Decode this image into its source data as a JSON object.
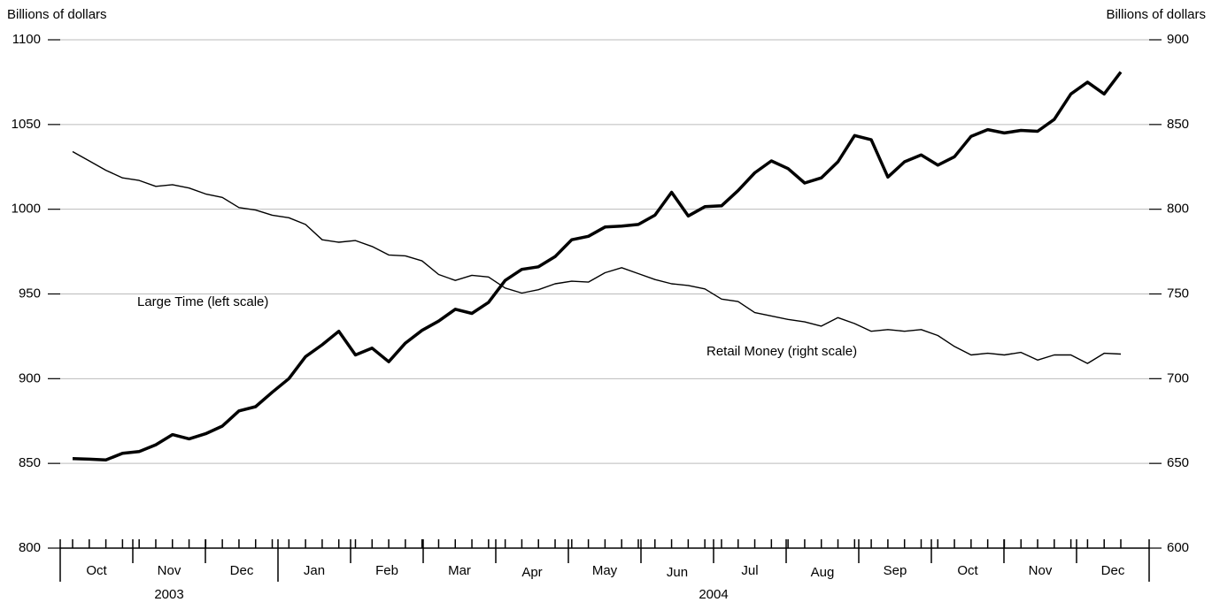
{
  "chart_data": {
    "type": "line",
    "y_label": "Billions of dollars",
    "y2_label": "Billions of dollars",
    "ylim": [
      800,
      1100
    ],
    "yticks": [
      800,
      850,
      900,
      950,
      1000,
      1050,
      1100
    ],
    "y2lim": [
      600,
      900
    ],
    "y2ticks": [
      600,
      650,
      700,
      750,
      800,
      850,
      900
    ],
    "grid": true,
    "months": [
      "Oct",
      "Nov",
      "Dec",
      "Jan",
      "Feb",
      "Mar",
      "Apr",
      "May",
      "Jun",
      "Jul",
      "Aug",
      "Sep",
      "Oct",
      "Nov",
      "Dec"
    ],
    "years": [
      "2003",
      "2004"
    ],
    "series": [
      {
        "name": "Large Time (left scale)",
        "color": "#000000",
        "width": 3.5,
        "axis": "y",
        "values": [
          852.8,
          852.5,
          852,
          856,
          857,
          861,
          867,
          864.5,
          867.5,
          872,
          881,
          883.5,
          892,
          900,
          913,
          920,
          928,
          914,
          918,
          910,
          921,
          928.5,
          934,
          941,
          938.5,
          945,
          958,
          964.5,
          966,
          972,
          982,
          984,
          989.5,
          990,
          991,
          996.5,
          1010,
          996,
          1001.5,
          1002,
          1011,
          1021.5,
          1028.5,
          1024,
          1015.5,
          1018.5,
          1028,
          1043.5,
          1041,
          1019,
          1028,
          1032,
          1026,
          1031,
          1043,
          1047,
          1045,
          1046.5,
          1046,
          1053,
          1068,
          1075,
          1068,
          1081
        ]
      },
      {
        "name": "Retail Money (right scale)",
        "color": "#000000",
        "width": 1.4,
        "axis": "y2",
        "values": [
          834,
          828.5,
          823,
          818.5,
          817,
          813.5,
          814.5,
          812.5,
          809,
          807,
          801,
          799.5,
          796.5,
          795,
          791,
          782,
          780.5,
          781.5,
          778,
          773,
          772.5,
          769.5,
          761.5,
          758,
          761,
          760,
          753.5,
          750.5,
          752.5,
          756,
          757.5,
          757,
          762.5,
          765.5,
          762,
          758.5,
          756,
          755,
          753,
          747,
          745.5,
          739,
          737,
          735,
          733.5,
          731,
          736,
          732.5,
          728,
          729,
          728,
          729,
          725.5,
          719,
          714,
          715,
          714,
          715.5,
          711,
          714,
          714,
          709,
          715,
          714.5
        ]
      }
    ]
  }
}
